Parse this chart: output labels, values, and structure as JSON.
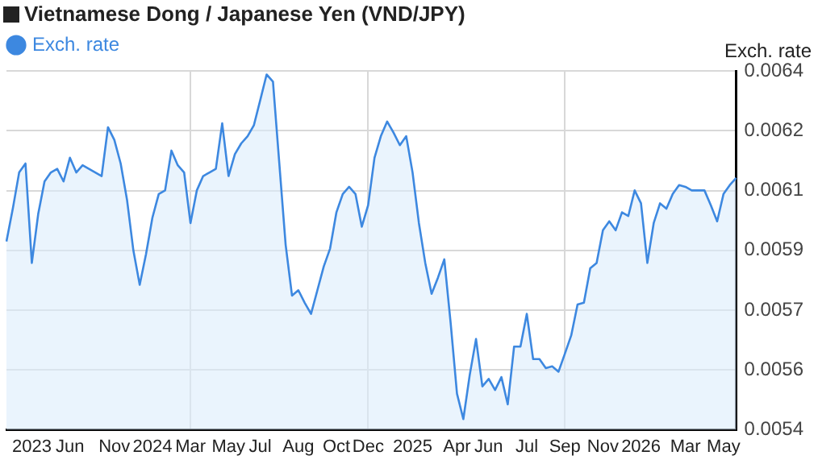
{
  "chart_data": {
    "type": "area",
    "title": "Vietnamese Dong / Japanese Yen (VND/JPY)",
    "ylabel": "Exch. rate",
    "categories": [
      null,
      null,
      null,
      null,
      "2023",
      null,
      null,
      null,
      null,
      null,
      "Jun",
      null,
      null,
      null,
      null,
      null,
      null,
      "Nov",
      null,
      null,
      null,
      null,
      null,
      "2024",
      null,
      null,
      null,
      null,
      null,
      "Mar",
      null,
      null,
      null,
      null,
      null,
      "May",
      null,
      null,
      null,
      null,
      "Jul",
      null,
      null,
      null,
      null,
      null,
      "Aug",
      null,
      null,
      null,
      null,
      null,
      "Oct",
      null,
      null,
      null,
      null,
      "Dec",
      null,
      null,
      null,
      null,
      null,
      null,
      "2025",
      null,
      null,
      null,
      null,
      null,
      null,
      "Apr",
      null,
      null,
      null,
      null,
      "Jun",
      null,
      null,
      null,
      null,
      null,
      "Jul",
      null,
      null,
      null,
      null,
      null,
      "Sep",
      null,
      null,
      null,
      null,
      null,
      "Nov",
      null,
      null,
      null,
      null,
      null,
      "2026",
      null,
      null,
      null,
      null,
      null,
      null,
      "Mar",
      null,
      null,
      null,
      null,
      null,
      "May",
      null,
      null
    ],
    "series": [
      {
        "name": "Exch. rate",
        "color": "#3d88e0",
        "values": [
          0.005925,
          0.006016,
          0.006117,
          0.006142,
          0.005865,
          0.006001,
          0.006092,
          0.006117,
          0.006127,
          0.006092,
          0.006158,
          0.006117,
          0.006137,
          0.006127,
          0.006117,
          0.006107,
          0.006243,
          0.006208,
          0.006142,
          0.006041,
          0.0059,
          0.005804,
          0.00589,
          0.005991,
          0.006057,
          0.006067,
          0.006178,
          0.006137,
          0.006117,
          0.005976,
          0.006067,
          0.006107,
          0.006117,
          0.006127,
          0.006254,
          0.006107,
          0.006168,
          0.006198,
          0.006218,
          0.006249,
          0.006319,
          0.00639,
          0.00637,
          0.006142,
          0.005915,
          0.005774,
          0.005789,
          0.005754,
          0.005723,
          0.005789,
          0.005855,
          0.005905,
          0.006006,
          0.006057,
          0.006077,
          0.006057,
          0.005966,
          0.006026,
          0.006158,
          0.006218,
          0.006259,
          0.006228,
          0.006193,
          0.006218,
          0.006117,
          0.005976,
          0.005865,
          0.005779,
          0.005824,
          0.005875,
          0.005698,
          0.005501,
          0.00543,
          0.005552,
          0.005653,
          0.005521,
          0.005542,
          0.005511,
          0.005547,
          0.005471,
          0.005632,
          0.005632,
          0.005723,
          0.005597,
          0.005597,
          0.005572,
          0.005577,
          0.005562,
          0.005612,
          0.005663,
          0.005749,
          0.005754,
          0.00585,
          0.005865,
          0.005956,
          0.005981,
          0.005956,
          0.006006,
          0.005996,
          0.006067,
          0.006031,
          0.005865,
          0.005976,
          0.006031,
          0.006016,
          0.006057,
          0.006082,
          0.006077,
          0.006067,
          0.006067,
          0.006067,
          0.006026,
          0.005981,
          0.006057,
          0.006082,
          0.006102
        ]
      }
    ],
    "ylim": [
      0.0054,
      0.0064
    ],
    "yticks": [
      {
        "value": 0.0054,
        "label": "0.0054"
      },
      {
        "value": 0.00556667,
        "label": "0.0056"
      },
      {
        "value": 0.00573333,
        "label": "0.0057"
      },
      {
        "value": 0.0059,
        "label": "0.0059"
      },
      {
        "value": 0.00606667,
        "label": "0.0061"
      },
      {
        "value": 0.00623333,
        "label": "0.0062"
      },
      {
        "value": 0.0064,
        "label": "0.0064"
      }
    ],
    "grid": true,
    "legend": "top left",
    "marker": "none",
    "line_style": "solid"
  }
}
